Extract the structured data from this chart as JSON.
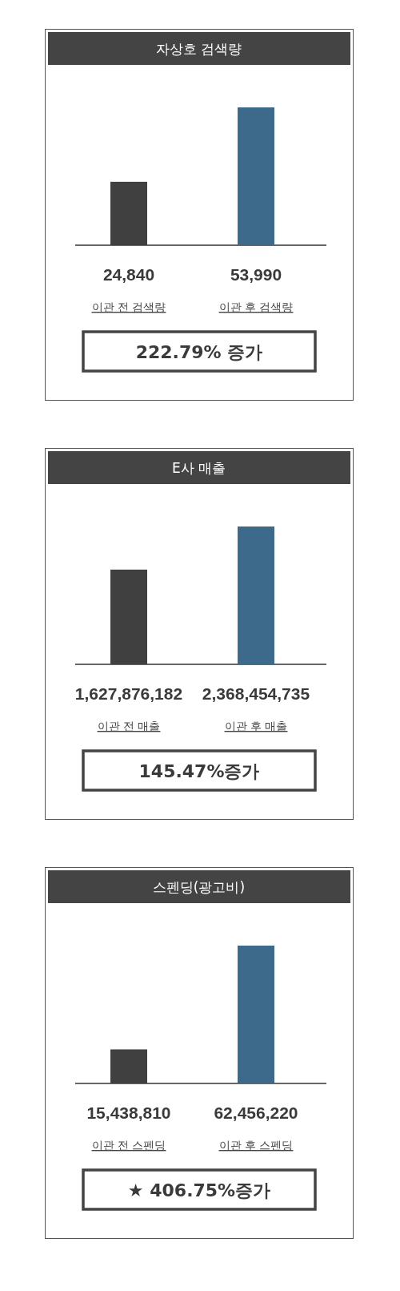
{
  "chart_data": [
    {
      "type": "bar",
      "title": "자상호 검색량",
      "categories": [
        "이관 전 검색량",
        "이관 후 검색량"
      ],
      "values": [
        24840,
        53990
      ],
      "colors": [
        "#404040",
        "#3d6a8a"
      ],
      "value_labels": [
        "24,840",
        "53,990"
      ],
      "annotations": [
        "222.79% 증가"
      ]
    },
    {
      "type": "bar",
      "title": "E사 매출",
      "categories": [
        "이관 전 매출",
        "이관 후 매출"
      ],
      "values": [
        1627876182,
        2368454735
      ],
      "colors": [
        "#404040",
        "#3d6a8a"
      ],
      "value_labels": [
        "1,627,876,182",
        "2,368,454,735"
      ],
      "annotations": [
        "145.47%증가"
      ]
    },
    {
      "type": "bar",
      "title": "스펜딩(광고비)",
      "categories": [
        "이관 전 스펜딩",
        "이관 후 스펜딩"
      ],
      "values": [
        15438810,
        62456220
      ],
      "colors": [
        "#404040",
        "#3d6a8a"
      ],
      "value_labels": [
        "15,438,810",
        "62,456,220"
      ],
      "annotations": [
        "★ 406.75%증가"
      ]
    }
  ]
}
